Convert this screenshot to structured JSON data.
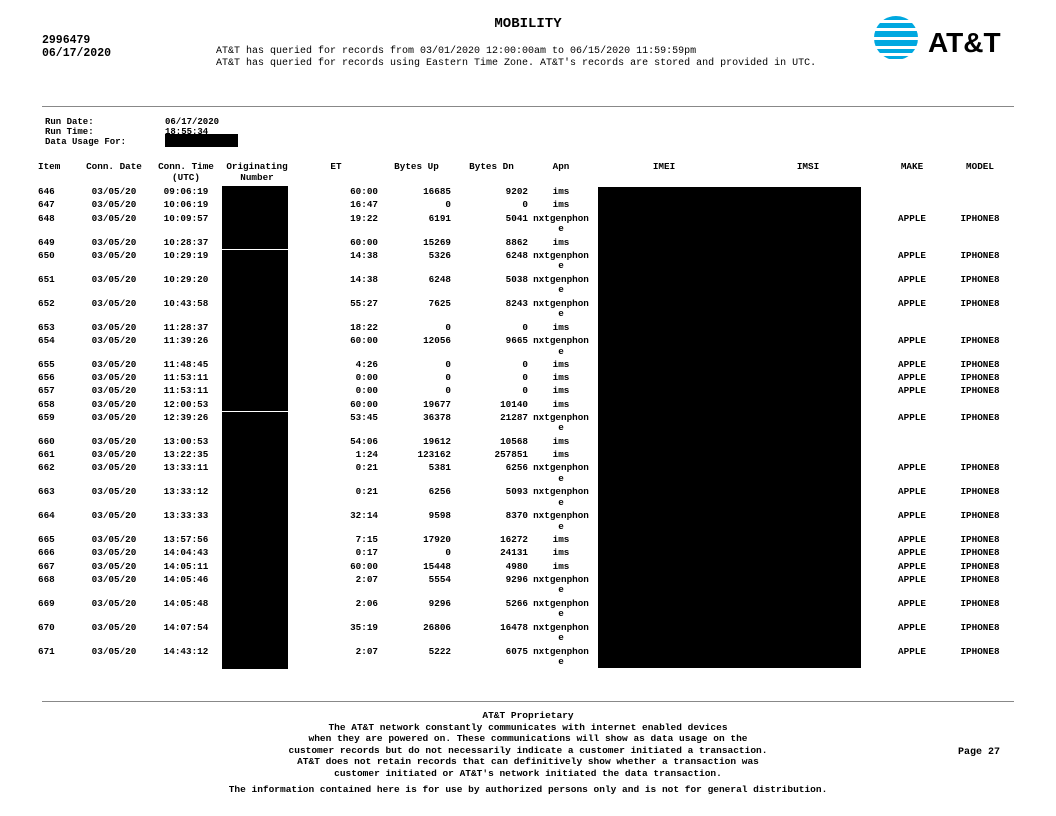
{
  "header": {
    "title": "MOBILITY",
    "account_number": "2996479",
    "date": "06/17/2020",
    "query_lines": [
      "AT&T has queried for records from 03/01/2020 12:00:00am to 06/15/2020 11:59:59pm",
      "AT&T has queried for records using Eastern Time Zone. AT&T's records are stored and provided in UTC."
    ],
    "logo_text": "AT&T",
    "logo_color": "#00a8e0"
  },
  "meta": {
    "run_date_label": "Run Date:",
    "run_date": "06/17/2020",
    "run_time_label": "Run Time:",
    "run_time": "18:55:34",
    "data_usage_label": "Data Usage For:"
  },
  "columns": [
    "Item",
    "Conn. Date",
    "Conn. Time (UTC)",
    "Originating Number",
    "ET",
    "Bytes Up",
    "Bytes Dn",
    "Apn",
    "IMEI",
    "IMSI",
    "MAKE",
    "MODEL"
  ],
  "rows": [
    {
      "item": "646",
      "date": "03/05/20",
      "time": "09:06:19",
      "et": "60:00",
      "up": "16685",
      "dn": "9202",
      "apn": "ims",
      "make": "",
      "model": ""
    },
    {
      "item": "647",
      "date": "03/05/20",
      "time": "10:06:19",
      "et": "16:47",
      "up": "0",
      "dn": "0",
      "apn": "ims",
      "make": "",
      "model": ""
    },
    {
      "item": "648",
      "date": "03/05/20",
      "time": "10:09:57",
      "et": "19:22",
      "up": "6191",
      "dn": "5041",
      "apn": "nxtgenphone",
      "make": "APPLE",
      "model": "IPHONE8"
    },
    {
      "item": "649",
      "date": "03/05/20",
      "time": "10:28:37",
      "et": "60:00",
      "up": "15269",
      "dn": "8862",
      "apn": "ims",
      "make": "",
      "model": ""
    },
    {
      "item": "650",
      "date": "03/05/20",
      "time": "10:29:19",
      "et": "14:38",
      "up": "5326",
      "dn": "6248",
      "apn": "nxtgenphone",
      "make": "APPLE",
      "model": "IPHONE8"
    },
    {
      "item": "651",
      "date": "03/05/20",
      "time": "10:29:20",
      "et": "14:38",
      "up": "6248",
      "dn": "5038",
      "apn": "nxtgenphone",
      "make": "APPLE",
      "model": "IPHONE8"
    },
    {
      "item": "652",
      "date": "03/05/20",
      "time": "10:43:58",
      "et": "55:27",
      "up": "7625",
      "dn": "8243",
      "apn": "nxtgenphone",
      "make": "APPLE",
      "model": "IPHONE8"
    },
    {
      "item": "653",
      "date": "03/05/20",
      "time": "11:28:37",
      "et": "18:22",
      "up": "0",
      "dn": "0",
      "apn": "ims",
      "make": "",
      "model": ""
    },
    {
      "item": "654",
      "date": "03/05/20",
      "time": "11:39:26",
      "et": "60:00",
      "up": "12056",
      "dn": "9665",
      "apn": "nxtgenphone",
      "make": "APPLE",
      "model": "IPHONE8"
    },
    {
      "item": "655",
      "date": "03/05/20",
      "time": "11:48:45",
      "et": "4:26",
      "up": "0",
      "dn": "0",
      "apn": "ims",
      "make": "APPLE",
      "model": "IPHONE8"
    },
    {
      "item": "656",
      "date": "03/05/20",
      "time": "11:53:11",
      "et": "0:00",
      "up": "0",
      "dn": "0",
      "apn": "ims",
      "make": "APPLE",
      "model": "IPHONE8"
    },
    {
      "item": "657",
      "date": "03/05/20",
      "time": "11:53:11",
      "et": "0:00",
      "up": "0",
      "dn": "0",
      "apn": "ims",
      "make": "APPLE",
      "model": "IPHONE8"
    },
    {
      "item": "658",
      "date": "03/05/20",
      "time": "12:00:53",
      "et": "60:00",
      "up": "19677",
      "dn": "10140",
      "apn": "ims",
      "make": "",
      "model": ""
    },
    {
      "item": "659",
      "date": "03/05/20",
      "time": "12:39:26",
      "et": "53:45",
      "up": "36378",
      "dn": "21287",
      "apn": "nxtgenphone",
      "make": "APPLE",
      "model": "IPHONE8"
    },
    {
      "item": "660",
      "date": "03/05/20",
      "time": "13:00:53",
      "et": "54:06",
      "up": "19612",
      "dn": "10568",
      "apn": "ims",
      "make": "",
      "model": ""
    },
    {
      "item": "661",
      "date": "03/05/20",
      "time": "13:22:35",
      "et": "1:24",
      "up": "123162",
      "dn": "257851",
      "apn": "ims",
      "make": "",
      "model": ""
    },
    {
      "item": "662",
      "date": "03/05/20",
      "time": "13:33:11",
      "et": "0:21",
      "up": "5381",
      "dn": "6256",
      "apn": "nxtgenphone",
      "make": "APPLE",
      "model": "IPHONE8"
    },
    {
      "item": "663",
      "date": "03/05/20",
      "time": "13:33:12",
      "et": "0:21",
      "up": "6256",
      "dn": "5093",
      "apn": "nxtgenphone",
      "make": "APPLE",
      "model": "IPHONE8"
    },
    {
      "item": "664",
      "date": "03/05/20",
      "time": "13:33:33",
      "et": "32:14",
      "up": "9598",
      "dn": "8370",
      "apn": "nxtgenphone",
      "make": "APPLE",
      "model": "IPHONE8"
    },
    {
      "item": "665",
      "date": "03/05/20",
      "time": "13:57:56",
      "et": "7:15",
      "up": "17920",
      "dn": "16272",
      "apn": "ims",
      "make": "APPLE",
      "model": "IPHONE8"
    },
    {
      "item": "666",
      "date": "03/05/20",
      "time": "14:04:43",
      "et": "0:17",
      "up": "0",
      "dn": "24131",
      "apn": "ims",
      "make": "APPLE",
      "model": "IPHONE8"
    },
    {
      "item": "667",
      "date": "03/05/20",
      "time": "14:05:11",
      "et": "60:00",
      "up": "15448",
      "dn": "4980",
      "apn": "ims",
      "make": "APPLE",
      "model": "IPHONE8"
    },
    {
      "item": "668",
      "date": "03/05/20",
      "time": "14:05:46",
      "et": "2:07",
      "up": "5554",
      "dn": "9296",
      "apn": "nxtgenphone",
      "make": "APPLE",
      "model": "IPHONE8"
    },
    {
      "item": "669",
      "date": "03/05/20",
      "time": "14:05:48",
      "et": "2:06",
      "up": "9296",
      "dn": "5266",
      "apn": "nxtgenphone",
      "make": "APPLE",
      "model": "IPHONE8"
    },
    {
      "item": "670",
      "date": "03/05/20",
      "time": "14:07:54",
      "et": "35:19",
      "up": "26806",
      "dn": "16478",
      "apn": "nxtgenphone",
      "make": "APPLE",
      "model": "IPHONE8"
    },
    {
      "item": "671",
      "date": "03/05/20",
      "time": "14:43:12",
      "et": "2:07",
      "up": "5222",
      "dn": "6075",
      "apn": "nxtgenphone",
      "make": "APPLE",
      "model": "IPHONE8"
    }
  ],
  "footer": {
    "lines": [
      "AT&T Proprietary",
      "The AT&T network constantly communicates with internet enabled devices",
      "when they are powered on. These communications will show as data usage on the",
      "customer records but do not necessarily indicate a customer initiated a transaction.",
      "AT&T does not retain records that can definitively show whether a transaction was",
      "customer initiated or AT&T's network initiated the data transaction."
    ],
    "page": "Page 27",
    "disclaimer": "The information contained here is for use by authorized persons only and is not for general distribution."
  }
}
